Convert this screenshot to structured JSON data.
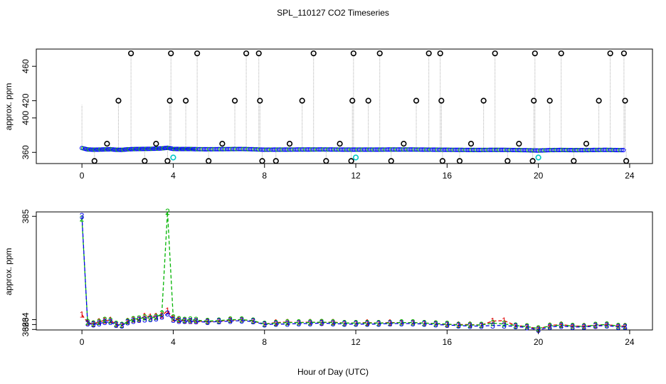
{
  "chart_data": {
    "title": "SPL_110127  CO2 Timeseries",
    "xlabel": "Hour of Day (UTC)",
    "xlim": [
      -2,
      25
    ],
    "x_ticks": [
      0,
      4,
      8,
      12,
      16,
      20,
      24
    ],
    "panels": [
      {
        "type": "scatter",
        "ylabel": "approx. ppm",
        "ylim": [
          347,
          480
        ],
        "y_ticks": [
          360,
          400,
          420,
          460
        ],
        "series": [
          {
            "color": "#0000ff",
            "style": "points",
            "x": [
              0.0,
              0.25,
              0.5,
              0.75,
              1.0,
              1.25,
              1.5,
              1.75,
              2.0,
              2.25,
              2.5,
              2.75,
              3.0,
              3.25,
              3.5,
              3.75,
              4.0,
              4.25,
              4.5,
              4.75,
              5.0,
              5.5,
              6.0,
              6.5,
              7.0,
              7.5,
              8.0,
              8.5,
              9.0,
              9.5,
              10.0,
              10.5,
              11.0,
              11.5,
              12.0,
              12.5,
              13.0,
              13.5,
              14.0,
              14.5,
              15.0,
              15.5,
              16.0,
              16.5,
              17.0,
              17.5,
              18.0,
              18.5,
              19.0,
              19.5,
              20.0,
              20.5,
              21.0,
              21.5,
              22.0,
              22.5,
              23.0,
              23.5,
              23.8
            ],
            "y": [
              365.0,
              363.4,
              363.1,
              363.2,
              363.4,
              363.6,
              363.0,
              362.9,
              363.5,
              363.8,
              363.9,
              364.0,
              364.1,
              364.3,
              364.6,
              365.3,
              364.0,
              363.9,
              363.9,
              363.9,
              363.7,
              363.6,
              363.7,
              363.8,
              363.9,
              363.6,
              363.1,
              363.2,
              363.2,
              363.3,
              363.3,
              363.4,
              363.3,
              363.2,
              363.2,
              363.2,
              363.2,
              363.3,
              363.3,
              363.3,
              363.2,
              363.1,
              363.0,
              362.9,
              362.8,
              362.8,
              362.9,
              362.9,
              362.7,
              362.5,
              362.1,
              362.6,
              362.8,
              362.6,
              362.6,
              362.8,
              362.9,
              362.6,
              362.6
            ]
          },
          {
            "color": "#000000",
            "style": "circles",
            "x": [
              0.55,
              1.1,
              1.6,
              2.15,
              2.75,
              3.25,
              3.75,
              3.85,
              3.9,
              4.55,
              5.05,
              5.55,
              6.15,
              6.7,
              7.2,
              7.75,
              7.8,
              7.9,
              8.5,
              9.1,
              9.65,
              10.15,
              10.7,
              11.3,
              11.8,
              11.85,
              11.9,
              12.55,
              13.05,
              13.55,
              14.1,
              14.65,
              15.2,
              15.7,
              15.75,
              15.8,
              16.55,
              17.05,
              17.6,
              18.1,
              18.65,
              19.15,
              19.75,
              19.8,
              19.85,
              20.5,
              21.0,
              21.55,
              22.1,
              22.65,
              23.15,
              23.75,
              23.8,
              23.85
            ],
            "y": [
              350,
              370,
              420,
              475,
              350,
              370,
              350,
              420,
              475,
              420,
              475,
              350,
              370,
              420,
              475,
              475,
              420,
              350,
              350,
              370,
              420,
              475,
              350,
              370,
              350,
              420,
              475,
              420,
              475,
              350,
              370,
              420,
              475,
              475,
              420,
              350,
              350,
              370,
              420,
              475,
              350,
              370,
              350,
              420,
              475,
              420,
              475,
              350,
              370,
              420,
              475,
              475,
              420,
              350
            ]
          },
          {
            "color": "#00c8c8",
            "style": "circles",
            "x": [
              4.0,
              12.0,
              20.0
            ],
            "y": [
              354,
              354,
              354
            ]
          }
        ]
      },
      {
        "type": "line",
        "ylabel": "approx. ppm",
        "ylim": [
          361.9,
          385.9
        ],
        "y_ticks": [
          362,
          363,
          364,
          385
        ],
        "series": [
          {
            "name": "1",
            "color": "#e00000",
            "x": [
              0.0,
              0.25,
              0.5,
              0.75,
              1.0,
              1.25,
              1.5,
              1.75,
              2.0,
              2.25,
              2.5,
              2.75,
              3.0,
              3.25,
              3.5,
              3.75,
              4.0,
              4.25,
              4.5,
              4.75,
              5.0,
              5.5,
              6.0,
              6.5,
              7.0,
              7.5,
              8.0,
              8.5,
              9.0,
              9.5,
              10.0,
              10.5,
              11.0,
              11.5,
              12.0,
              12.5,
              13.0,
              13.5,
              14.0,
              14.5,
              15.0,
              15.5,
              16.0,
              16.5,
              17.0,
              17.5,
              18.0,
              18.5,
              19.0,
              19.5,
              20.0,
              20.5,
              21.0,
              21.5,
              22.0,
              22.5,
              23.0,
              23.5,
              23.8
            ],
            "y": [
              365.0,
              363.4,
              363.1,
              363.6,
              363.8,
              363.9,
              363.0,
              362.9,
              363.7,
              364.0,
              364.0,
              364.7,
              364.6,
              364.7,
              364.9,
              365.8,
              364.2,
              363.9,
              363.8,
              363.7,
              363.7,
              363.6,
              363.7,
              363.9,
              364.0,
              363.7,
              363.1,
              363.4,
              363.5,
              363.4,
              363.5,
              363.4,
              363.5,
              363.3,
              363.3,
              363.4,
              363.3,
              363.4,
              363.4,
              363.4,
              363.3,
              363.2,
              363.0,
              363.0,
              363.0,
              362.9,
              363.7,
              363.8,
              362.8,
              362.6,
              362.1,
              362.8,
              363.0,
              362.7,
              362.7,
              362.8,
              363.0,
              362.7,
              362.7
            ]
          },
          {
            "name": "2",
            "color": "#00b400",
            "x": [
              0.0,
              0.25,
              0.5,
              0.75,
              1.0,
              1.25,
              1.5,
              1.75,
              2.0,
              2.25,
              2.5,
              2.75,
              3.0,
              3.25,
              3.5,
              3.75,
              4.0,
              4.25,
              4.5,
              4.75,
              5.0,
              5.5,
              6.0,
              6.5,
              7.0,
              7.5,
              8.0,
              8.5,
              9.0,
              9.5,
              10.0,
              10.5,
              11.0,
              11.5,
              12.0,
              12.5,
              13.0,
              13.5,
              14.0,
              14.5,
              15.0,
              15.5,
              16.0,
              16.5,
              17.0,
              17.5,
              18.0,
              18.5,
              19.0,
              19.5,
              20.0,
              20.5,
              21.0,
              21.5,
              22.0,
              22.5,
              23.0,
              23.5,
              23.8
            ],
            "y": [
              384.5,
              363.5,
              363.2,
              363.5,
              363.9,
              363.8,
              363.1,
              362.9,
              363.6,
              364.1,
              364.2,
              364.4,
              364.3,
              364.5,
              365.2,
              385.9,
              364.4,
              364.1,
              363.9,
              364.0,
              363.9,
              363.7,
              363.8,
              364.0,
              364.0,
              363.8,
              363.1,
              363.3,
              363.4,
              363.4,
              363.4,
              363.5,
              363.4,
              363.3,
              363.3,
              363.3,
              363.3,
              363.3,
              363.4,
              363.4,
              363.3,
              363.2,
              363.1,
              362.9,
              362.9,
              362.9,
              363.3,
              363.1,
              362.8,
              362.6,
              362.2,
              362.7,
              362.9,
              362.7,
              362.6,
              362.9,
              363.0,
              362.7,
              362.6
            ]
          },
          {
            "name": "3",
            "color": "#0000e6",
            "x": [
              0.0,
              0.25,
              0.5,
              0.75,
              1.0,
              1.25,
              1.5,
              1.75,
              2.0,
              2.25,
              2.5,
              2.75,
              3.0,
              3.25,
              3.5,
              3.75,
              4.0,
              4.25,
              4.5,
              4.75,
              5.0,
              5.5,
              6.0,
              6.5,
              7.0,
              7.5,
              8.0,
              8.5,
              9.0,
              9.5,
              10.0,
              10.5,
              11.0,
              11.5,
              12.0,
              12.5,
              13.0,
              13.5,
              14.0,
              14.5,
              15.0,
              15.5,
              16.0,
              16.5,
              17.0,
              17.5,
              18.0,
              18.5,
              19.0,
              19.5,
              20.0,
              20.5,
              21.0,
              21.5,
              22.0,
              22.5,
              23.0,
              23.5,
              23.8
            ],
            "y": [
              385.0,
              363.2,
              363.0,
              363.2,
              363.5,
              363.5,
              362.9,
              362.8,
              363.4,
              363.7,
              363.9,
              364.0,
              364.1,
              364.2,
              364.6,
              365.2,
              363.9,
              363.7,
              363.7,
              363.7,
              363.6,
              363.5,
              363.6,
              363.7,
              363.8,
              363.6,
              363.0,
              363.1,
              363.1,
              363.2,
              363.2,
              363.3,
              363.2,
              363.1,
              363.1,
              363.1,
              363.1,
              363.2,
              363.2,
              363.2,
              363.1,
              363.0,
              362.9,
              362.8,
              362.7,
              362.7,
              362.8,
              362.8,
              362.6,
              362.4,
              361.9,
              362.5,
              362.7,
              362.5,
              362.5,
              362.7,
              362.8,
              362.5,
              362.5
            ]
          }
        ]
      }
    ]
  }
}
